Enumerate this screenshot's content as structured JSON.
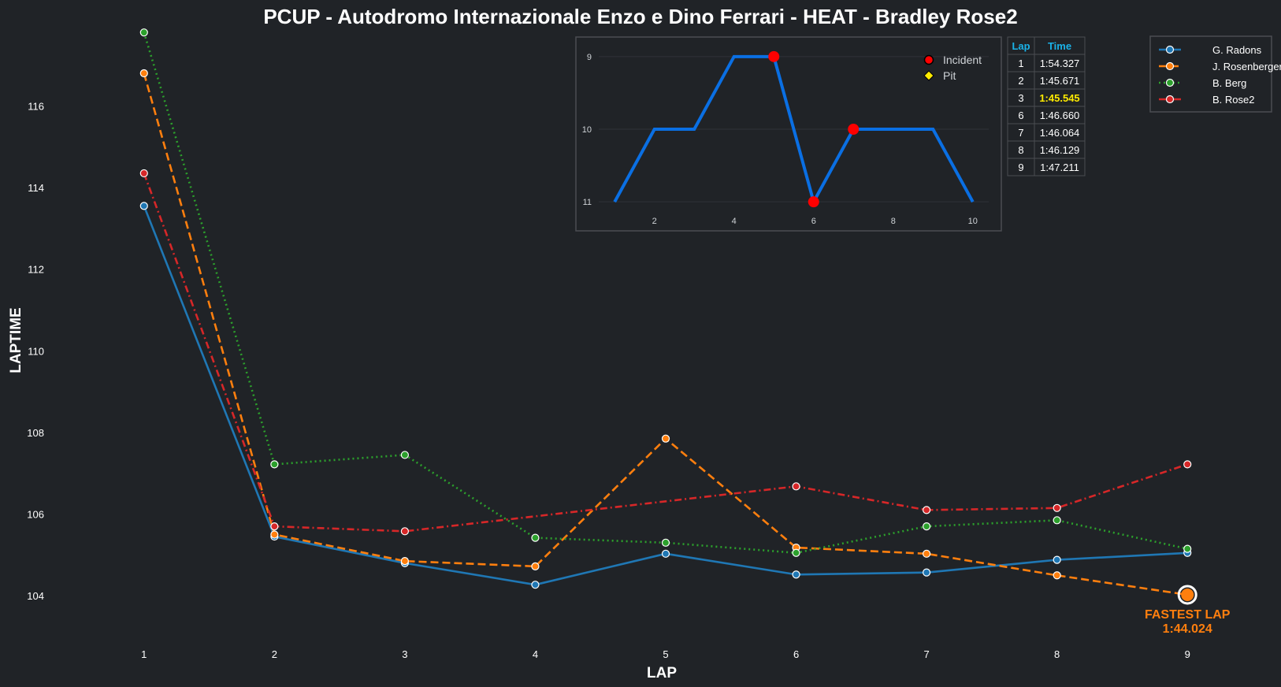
{
  "chart_data": {
    "type": "line",
    "title": "PCUP - Autodromo Internazionale Enzo e Dino Ferrari - HEAT - Bradley Rose2",
    "xlabel": "LAP",
    "ylabel": "LAPTIME",
    "x": [
      1,
      2,
      3,
      4,
      5,
      6,
      7,
      8,
      9
    ],
    "xlim": [
      0.5,
      9.5
    ],
    "ylim": [
      103,
      117.9
    ],
    "yticks": [
      104,
      106,
      108,
      110,
      112,
      114,
      116
    ],
    "grid": false,
    "legend_position": "top-right",
    "series": [
      {
        "name": "G. Radons",
        "color": "#1f77b4",
        "style": "solid",
        "values": [
          113.55,
          105.45,
          104.8,
          104.27,
          105.03,
          104.52,
          104.57,
          104.88,
          105.05
        ]
      },
      {
        "name": "J. Rosenberger",
        "color": "#ff7f0e",
        "style": "dashed",
        "values": [
          116.8,
          105.5,
          104.85,
          104.72,
          107.85,
          105.18,
          105.03,
          104.5,
          104.024
        ]
      },
      {
        "name": "B. Berg",
        "color": "#2ca02c",
        "style": "dotted",
        "values": [
          117.8,
          107.22,
          107.45,
          105.42,
          105.3,
          105.05,
          105.7,
          105.85,
          105.15
        ]
      },
      {
        "name": "B. Rose2",
        "color": "#d62728",
        "style": "dashdot",
        "values": [
          114.35,
          105.7,
          105.58,
          null,
          null,
          106.68,
          106.1,
          106.15,
          107.22
        ]
      }
    ],
    "annotation": {
      "label": "FASTEST LAP",
      "time": "1:44.024",
      "lap": 9,
      "value": 104.024,
      "color": "#ff7f0e"
    },
    "inset": {
      "type": "line",
      "color": "#0a6fe3",
      "x": [
        1,
        2,
        3,
        4,
        5,
        6,
        7,
        8,
        9,
        10
      ],
      "positions": [
        11,
        10,
        10,
        9,
        9,
        11,
        10,
        10,
        10,
        11
      ],
      "xticks": [
        2,
        4,
        6,
        8,
        10
      ],
      "yticks": [
        9,
        10,
        11
      ],
      "xlim": [
        0.6,
        10.4
      ],
      "ylim": [
        8.85,
        11.15
      ],
      "incidents": [
        {
          "x": 5,
          "y": 9
        },
        {
          "x": 6,
          "y": 11
        },
        {
          "x": 7,
          "y": 10
        }
      ],
      "legend": {
        "incident": "Incident",
        "pit": "Pit"
      }
    },
    "table": {
      "headers": [
        "Lap",
        "Time"
      ],
      "rows": [
        [
          "1",
          "1:54.327"
        ],
        [
          "2",
          "1:45.671"
        ],
        [
          "3",
          "1:45.545"
        ],
        [
          "6",
          "1:46.660"
        ],
        [
          "7",
          "1:46.064"
        ],
        [
          "8",
          "1:46.129"
        ],
        [
          "9",
          "1:47.211"
        ]
      ],
      "highlight_row": 2,
      "header_color": "#1ab2e8",
      "highlight_color": "#ffeb00"
    }
  }
}
